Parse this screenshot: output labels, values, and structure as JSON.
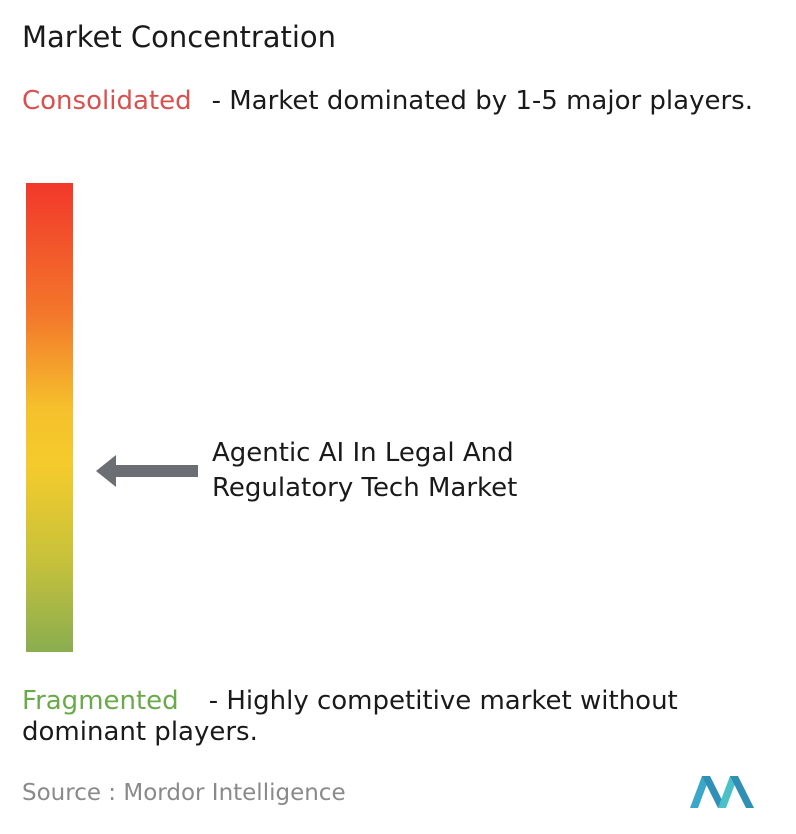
{
  "header": {
    "title": "Market Concentration"
  },
  "scale": {
    "top": {
      "label": "Consolidated",
      "description": "- Market dominated by 1-5 major players."
    },
    "bottom": {
      "label": "Fragmented",
      "description": "- Highly competitive market without dominant players."
    }
  },
  "marker": {
    "label": "Agentic AI In Legal And Regulatory Tech Market"
  },
  "footer": {
    "source_label": "Source :",
    "source": "Mordor Intelligence"
  }
}
